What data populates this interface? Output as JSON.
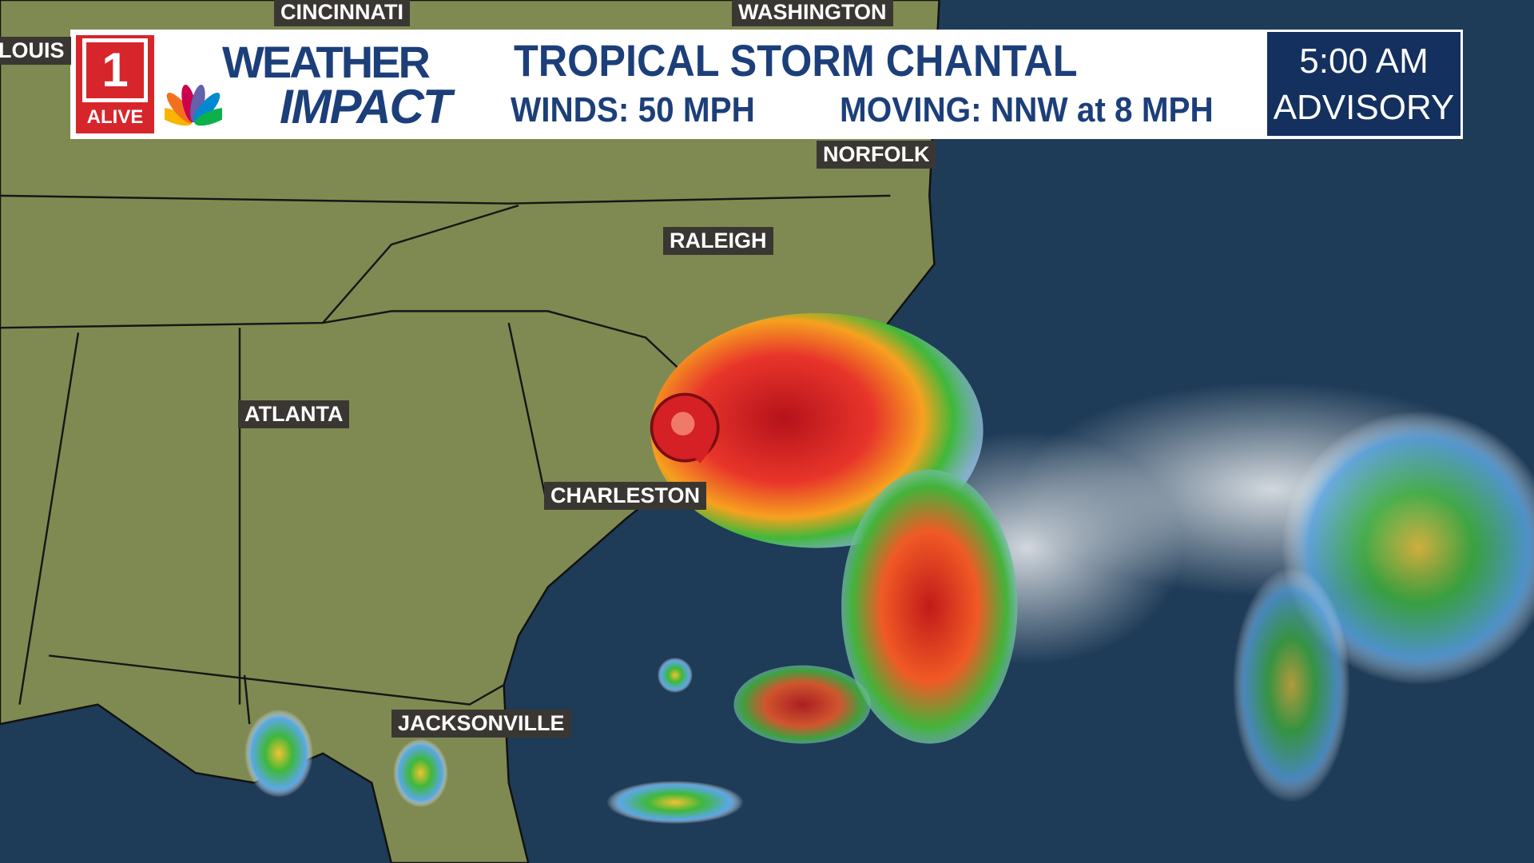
{
  "header": {
    "logo_number": "1",
    "logo_text": "ALIVE",
    "brand_top": "WEATHER",
    "brand_bottom": "IMPACT",
    "title": "TROPICAL STORM CHANTAL",
    "winds": "WINDS: 50 MPH",
    "moving": "MOVING: NNW at 8 MPH",
    "advisory_time": "5:00 AM",
    "advisory_label": "ADVISORY"
  },
  "map": {
    "cities": [
      {
        "label": "CINCINNATI"
      },
      {
        "label": "WASHINGTON"
      },
      {
        "label": "LOUIS"
      },
      {
        "label": "NORFOLK"
      },
      {
        "label": "RALEIGH"
      },
      {
        "label": "ATLANTA"
      },
      {
        "label": "CHARLESTON"
      },
      {
        "label": "JACKSONVILLE"
      }
    ]
  }
}
